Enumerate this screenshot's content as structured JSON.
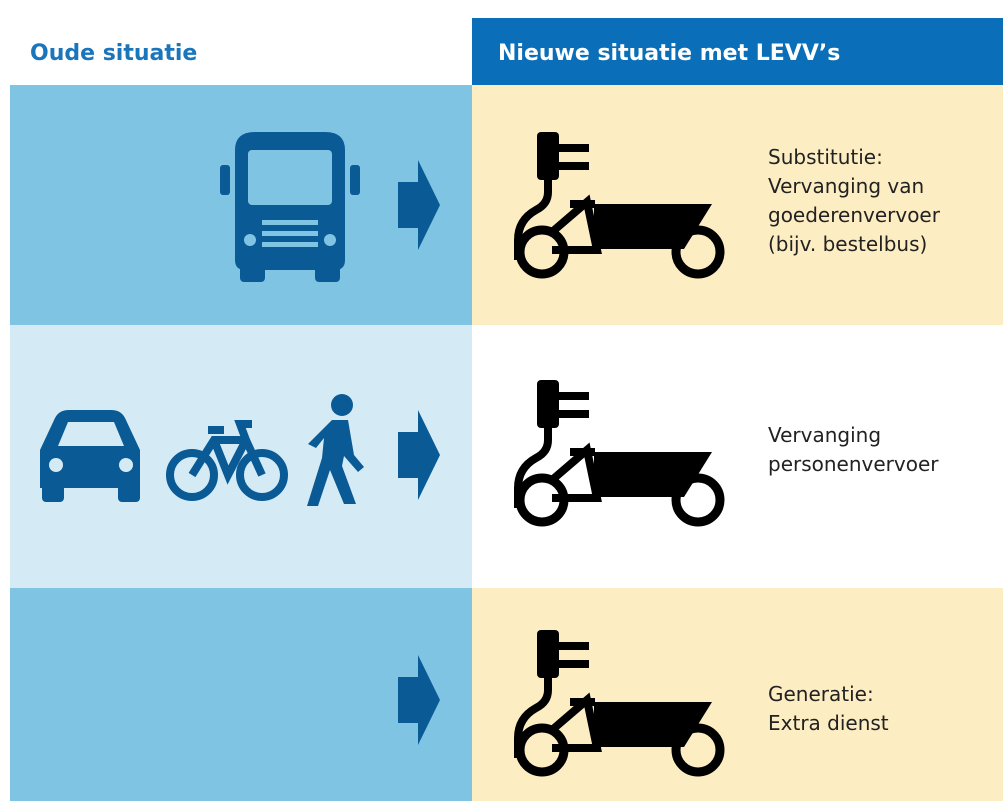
{
  "header": {
    "left": "Oude situatie",
    "right": "Nieuwe situatie met LEVV’s"
  },
  "rows": [
    {
      "lines": [
        "Substitutie:",
        "Vervanging van",
        "goederenvervoer",
        "(bijv. bestelbus)"
      ]
    },
    {
      "lines": [
        "Vervanging",
        "personenvervoer"
      ]
    },
    {
      "lines": [
        "Generatie:",
        "Extra dienst"
      ]
    }
  ]
}
